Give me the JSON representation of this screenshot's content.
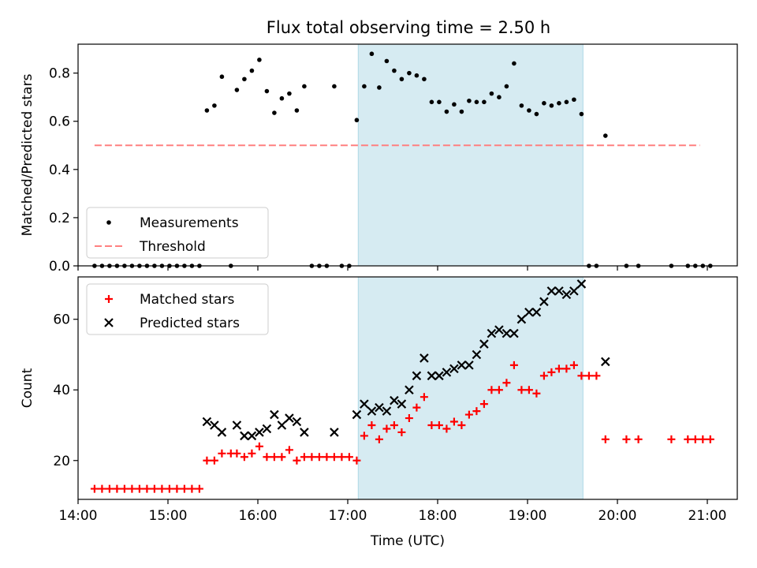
{
  "chart_data": [
    {
      "type": "scatter",
      "panel": "top",
      "title": "Flux total observing time = 2.50 h",
      "xlabel": "",
      "ylabel": "Matched/Predicted stars",
      "xlim": [
        "14:00",
        "21:20"
      ],
      "ylim": [
        0,
        0.92
      ],
      "yticks": [
        0.0,
        0.2,
        0.4,
        0.6,
        0.8
      ],
      "ytick_labels": [
        "0.0",
        "0.2",
        "0.4",
        "0.6",
        "0.8"
      ],
      "grid": false,
      "legend": "lower-left",
      "shaded_region": {
        "x": [
          "17:07",
          "19:37"
        ],
        "color": "#add8e6"
      },
      "series": [
        {
          "name": "Measurements",
          "marker": "dot",
          "color": "#000000",
          "points": [
            [
              "14:11",
              0
            ],
            [
              "14:16",
              0
            ],
            [
              "14:21",
              0
            ],
            [
              "14:26",
              0
            ],
            [
              "14:31",
              0
            ],
            [
              "14:36",
              0
            ],
            [
              "14:41",
              0
            ],
            [
              "14:46",
              0
            ],
            [
              "14:51",
              0
            ],
            [
              "14:56",
              0
            ],
            [
              "15:01",
              0
            ],
            [
              "15:06",
              0
            ],
            [
              "15:11",
              0
            ],
            [
              "15:16",
              0
            ],
            [
              "15:21",
              0
            ],
            [
              "15:26",
              0.645
            ],
            [
              "15:31",
              0.665
            ],
            [
              "15:36",
              0.785
            ],
            [
              "15:42",
              0
            ],
            [
              "15:46",
              0.73
            ],
            [
              "15:51",
              0.775
            ],
            [
              "15:56",
              0.81
            ],
            [
              "16:01",
              0.855
            ],
            [
              "16:06",
              0.725
            ],
            [
              "16:11",
              0.635
            ],
            [
              "16:16",
              0.695
            ],
            [
              "16:21",
              0.715
            ],
            [
              "16:26",
              0.645
            ],
            [
              "16:31",
              0.745
            ],
            [
              "16:36",
              0
            ],
            [
              "16:41",
              0
            ],
            [
              "16:46",
              0
            ],
            [
              "16:51",
              0.745
            ],
            [
              "16:56",
              0
            ],
            [
              "17:01",
              0
            ],
            [
              "17:06",
              0.605
            ],
            [
              "17:11",
              0.745
            ],
            [
              "17:16",
              0.88
            ],
            [
              "17:21",
              0.74
            ],
            [
              "17:26",
              0.85
            ],
            [
              "17:31",
              0.81
            ],
            [
              "17:36",
              0.775
            ],
            [
              "17:41",
              0.8
            ],
            [
              "17:46",
              0.79
            ],
            [
              "17:51",
              0.775
            ],
            [
              "17:56",
              0.68
            ],
            [
              "18:01",
              0.68
            ],
            [
              "18:06",
              0.64
            ],
            [
              "18:11",
              0.67
            ],
            [
              "18:16",
              0.64
            ],
            [
              "18:21",
              0.685
            ],
            [
              "18:26",
              0.68
            ],
            [
              "18:31",
              0.68
            ],
            [
              "18:36",
              0.715
            ],
            [
              "18:41",
              0.7
            ],
            [
              "18:46",
              0.745
            ],
            [
              "18:51",
              0.84
            ],
            [
              "18:56",
              0.665
            ],
            [
              "19:01",
              0.645
            ],
            [
              "19:06",
              0.63
            ],
            [
              "19:11",
              0.675
            ],
            [
              "19:16",
              0.665
            ],
            [
              "19:21",
              0.675
            ],
            [
              "19:26",
              0.68
            ],
            [
              "19:31",
              0.69
            ],
            [
              "19:36",
              0.63
            ],
            [
              "19:41",
              0
            ],
            [
              "19:46",
              0
            ],
            [
              "19:52",
              0.54
            ],
            [
              "20:06",
              0
            ],
            [
              "20:14",
              0
            ],
            [
              "20:36",
              0
            ],
            [
              "20:47",
              0
            ],
            [
              "20:52",
              0
            ],
            [
              "20:57",
              0
            ],
            [
              "21:02",
              0
            ]
          ]
        },
        {
          "name": "Threshold",
          "style": "dashed-line",
          "color": "#ff8080",
          "points": [
            [
              "14:11",
              0.5
            ],
            [
              "20:55",
              0.5
            ]
          ]
        }
      ]
    },
    {
      "type": "scatter",
      "panel": "bottom",
      "title": "",
      "xlabel": "Time (UTC)",
      "ylabel": "Count",
      "xlim": [
        "14:00",
        "21:20"
      ],
      "ylim": [
        9,
        72
      ],
      "xticks": [
        "14:00",
        "15:00",
        "16:00",
        "17:00",
        "18:00",
        "19:00",
        "20:00",
        "21:00"
      ],
      "yticks": [
        20,
        40,
        60
      ],
      "ytick_labels": [
        "20",
        "40",
        "60"
      ],
      "grid": false,
      "legend": "upper-left",
      "shaded_region": {
        "x": [
          "17:07",
          "19:37"
        ],
        "color": "#add8e6"
      },
      "series": [
        {
          "name": "Matched stars",
          "marker": "plus",
          "color": "#ff0000",
          "points": [
            [
              "14:11",
              12
            ],
            [
              "14:16",
              12
            ],
            [
              "14:21",
              12
            ],
            [
              "14:26",
              12
            ],
            [
              "14:31",
              12
            ],
            [
              "14:36",
              12
            ],
            [
              "14:41",
              12
            ],
            [
              "14:46",
              12
            ],
            [
              "14:51",
              12
            ],
            [
              "14:56",
              12
            ],
            [
              "15:01",
              12
            ],
            [
              "15:06",
              12
            ],
            [
              "15:11",
              12
            ],
            [
              "15:16",
              12
            ],
            [
              "15:21",
              12
            ],
            [
              "15:26",
              20
            ],
            [
              "15:31",
              20
            ],
            [
              "15:36",
              22
            ],
            [
              "15:42",
              22
            ],
            [
              "15:46",
              22
            ],
            [
              "15:51",
              21
            ],
            [
              "15:56",
              22
            ],
            [
              "16:01",
              24
            ],
            [
              "16:06",
              21
            ],
            [
              "16:11",
              21
            ],
            [
              "16:16",
              21
            ],
            [
              "16:21",
              23
            ],
            [
              "16:26",
              20
            ],
            [
              "16:31",
              21
            ],
            [
              "16:36",
              21
            ],
            [
              "16:41",
              21
            ],
            [
              "16:46",
              21
            ],
            [
              "16:51",
              21
            ],
            [
              "16:56",
              21
            ],
            [
              "17:01",
              21
            ],
            [
              "17:06",
              20
            ],
            [
              "17:11",
              27
            ],
            [
              "17:16",
              30
            ],
            [
              "17:21",
              26
            ],
            [
              "17:26",
              29
            ],
            [
              "17:31",
              30
            ],
            [
              "17:36",
              28
            ],
            [
              "17:41",
              32
            ],
            [
              "17:46",
              35
            ],
            [
              "17:51",
              38
            ],
            [
              "17:56",
              30
            ],
            [
              "18:01",
              30
            ],
            [
              "18:06",
              29
            ],
            [
              "18:11",
              31
            ],
            [
              "18:16",
              30
            ],
            [
              "18:21",
              33
            ],
            [
              "18:26",
              34
            ],
            [
              "18:31",
              36
            ],
            [
              "18:36",
              40
            ],
            [
              "18:41",
              40
            ],
            [
              "18:46",
              42
            ],
            [
              "18:51",
              47
            ],
            [
              "18:56",
              40
            ],
            [
              "19:01",
              40
            ],
            [
              "19:06",
              39
            ],
            [
              "19:11",
              44
            ],
            [
              "19:16",
              45
            ],
            [
              "19:21",
              46
            ],
            [
              "19:26",
              46
            ],
            [
              "19:31",
              47
            ],
            [
              "19:36",
              44
            ],
            [
              "19:41",
              44
            ],
            [
              "19:46",
              44
            ],
            [
              "19:52",
              26
            ],
            [
              "20:06",
              26
            ],
            [
              "20:14",
              26
            ],
            [
              "20:36",
              26
            ],
            [
              "20:47",
              26
            ],
            [
              "20:52",
              26
            ],
            [
              "20:57",
              26
            ],
            [
              "21:02",
              26
            ]
          ]
        },
        {
          "name": "Predicted stars",
          "marker": "x",
          "color": "#000000",
          "points": [
            [
              "15:26",
              31
            ],
            [
              "15:31",
              30
            ],
            [
              "15:36",
              28
            ],
            [
              "15:46",
              30
            ],
            [
              "15:51",
              27
            ],
            [
              "15:56",
              27
            ],
            [
              "16:01",
              28
            ],
            [
              "16:06",
              29
            ],
            [
              "16:11",
              33
            ],
            [
              "16:16",
              30
            ],
            [
              "16:21",
              32
            ],
            [
              "16:26",
              31
            ],
            [
              "16:31",
              28
            ],
            [
              "16:51",
              28
            ],
            [
              "17:06",
              33
            ],
            [
              "17:11",
              36
            ],
            [
              "17:16",
              34
            ],
            [
              "17:21",
              35
            ],
            [
              "17:26",
              34
            ],
            [
              "17:31",
              37
            ],
            [
              "17:36",
              36
            ],
            [
              "17:41",
              40
            ],
            [
              "17:46",
              44
            ],
            [
              "17:51",
              49
            ],
            [
              "17:56",
              44
            ],
            [
              "18:01",
              44
            ],
            [
              "18:06",
              45
            ],
            [
              "18:11",
              46
            ],
            [
              "18:16",
              47
            ],
            [
              "18:21",
              47
            ],
            [
              "18:26",
              50
            ],
            [
              "18:31",
              53
            ],
            [
              "18:36",
              56
            ],
            [
              "18:41",
              57
            ],
            [
              "18:46",
              56
            ],
            [
              "18:51",
              56
            ],
            [
              "18:56",
              60
            ],
            [
              "19:01",
              62
            ],
            [
              "19:06",
              62
            ],
            [
              "19:11",
              65
            ],
            [
              "19:16",
              68
            ],
            [
              "19:21",
              68
            ],
            [
              "19:26",
              67
            ],
            [
              "19:31",
              68
            ],
            [
              "19:36",
              70
            ],
            [
              "19:52",
              48
            ]
          ]
        }
      ]
    }
  ]
}
